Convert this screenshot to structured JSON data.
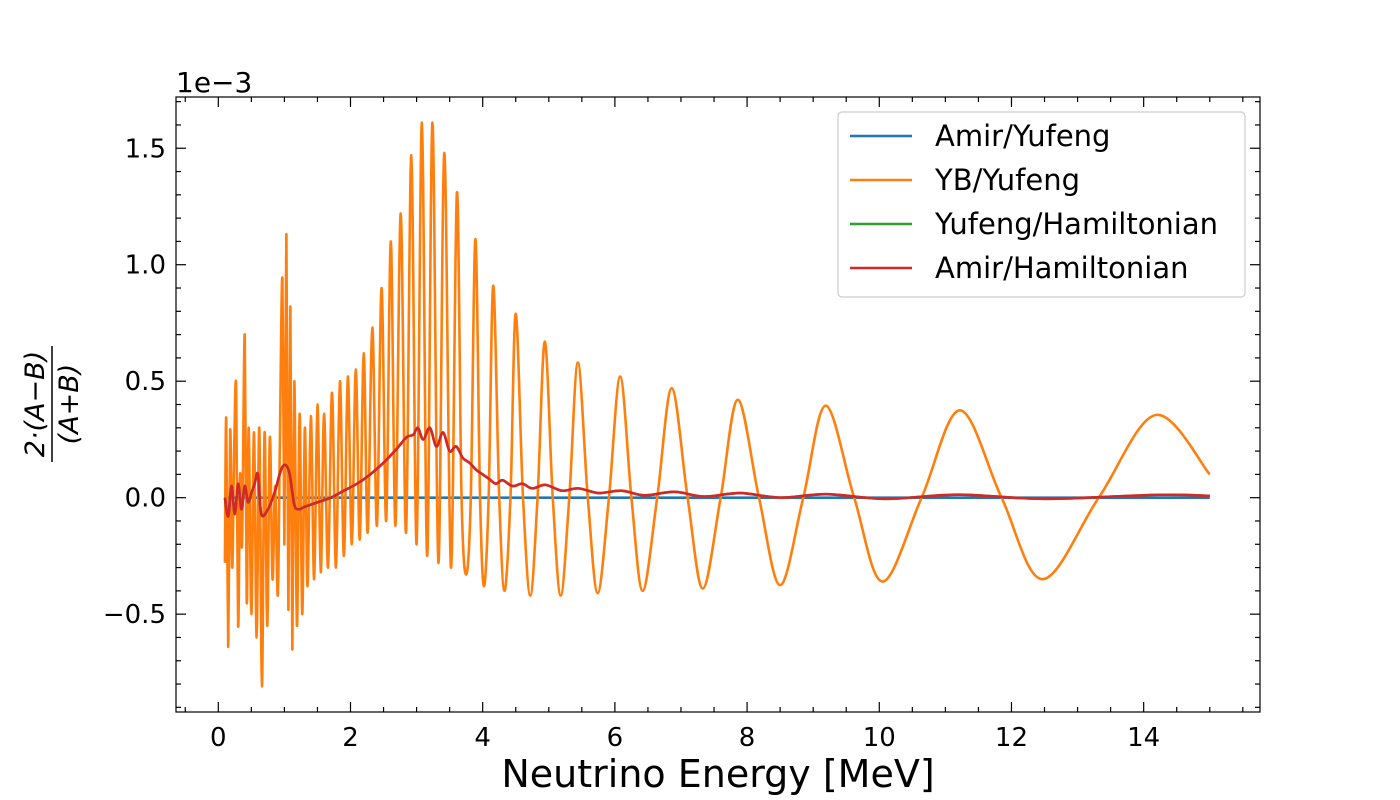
{
  "chart_data": {
    "type": "line",
    "offset_label": "1e−3",
    "xlabel": "Neutrino Energy [MeV]",
    "ylabel": {
      "numerator": "2·(A−B)",
      "denominator": "(A+B)"
    },
    "xlim": [
      -0.64,
      15.76
    ],
    "ylim": [
      -0.92,
      1.72
    ],
    "xticks": [
      0,
      2,
      4,
      6,
      8,
      10,
      12,
      14
    ],
    "yticks": [
      {
        "value": -0.5,
        "label": "−0.5"
      },
      {
        "value": 0,
        "label": "0.0"
      },
      0.5,
      {
        "value": 1,
        "label": "1.0"
      },
      1.5
    ],
    "xminorticks": [
      -0.5,
      0.5,
      1,
      1.5,
      2.5,
      3,
      3.5,
      4.5,
      5,
      5.5,
      6.5,
      7,
      7.5,
      8.5,
      9,
      9.5,
      10.5,
      11,
      11.5,
      12.5,
      13,
      13.5,
      14.5,
      15,
      15.5
    ],
    "yminorticks": [
      -0.9,
      -0.8,
      -0.7,
      -0.6,
      -0.4,
      -0.3,
      -0.2,
      -0.1,
      0.1,
      0.2,
      0.3,
      0.4,
      0.6,
      0.7,
      0.8,
      0.9,
      1.1,
      1.2,
      1.3,
      1.4,
      1.6,
      1.7
    ],
    "tick_direction": "in",
    "legend": "upper right",
    "series": [
      {
        "name": "Amir/Yufeng",
        "color": "#1f77b4",
        "x": [
          0.1,
          15
        ],
        "values": [
          0,
          0
        ]
      },
      {
        "name": "YB/Yufeng",
        "color": "#ff7f0e",
        "x": [
          0.1,
          0.12,
          0.15,
          0.18,
          0.21,
          0.24,
          0.27,
          0.3,
          0.33,
          0.36,
          0.4,
          0.43,
          0.46,
          0.5,
          0.54,
          0.58,
          0.62,
          0.66,
          0.7,
          0.74,
          0.78,
          0.82,
          0.86,
          0.9,
          0.93,
          0.97,
          1.0,
          1.03,
          1.06,
          1.09,
          1.12,
          1.15,
          1.19,
          1.23,
          1.27,
          1.31,
          1.35,
          1.4,
          1.45,
          1.5,
          1.55,
          1.6,
          1.66,
          1.72,
          1.78,
          1.84,
          1.9,
          1.96,
          2.02,
          2.08,
          2.14,
          2.2,
          2.26,
          2.33,
          2.4,
          2.47,
          2.54,
          2.61,
          2.68,
          2.76,
          2.84,
          2.92,
          3.0,
          3.08,
          3.16,
          3.24,
          3.33,
          3.42,
          3.52,
          3.61,
          3.68,
          3.75,
          3.82,
          3.89,
          3.96,
          4.02,
          4.09,
          4.16,
          4.25,
          4.33,
          4.42,
          4.5,
          4.61,
          4.72,
          4.83,
          4.94,
          5.06,
          5.18,
          5.31,
          5.44,
          5.59,
          5.74,
          5.91,
          6.08,
          6.25,
          6.42,
          6.64,
          6.86,
          7.1,
          7.33,
          7.6,
          7.86,
          8.18,
          8.5,
          8.85,
          9.19,
          9.62,
          10.05,
          10.64,
          11.22,
          11.85,
          12.47,
          13.32,
          14.18,
          15
        ],
        "values": [
          -0.28,
          0.34,
          -0.64,
          0.29,
          -0.3,
          0.2,
          0.47,
          -0.55,
          0.1,
          -0.2,
          0.7,
          -0.45,
          0.3,
          -0.5,
          0.28,
          -0.6,
          0.3,
          -0.81,
          0.28,
          -0.55,
          0.26,
          -0.35,
          0.05,
          -0.42,
          0.2,
          0.94,
          -0.2,
          1.13,
          -0.48,
          0.82,
          -0.65,
          0.5,
          -0.55,
          0.36,
          -0.5,
          0.3,
          -0.38,
          0.35,
          -0.35,
          0.4,
          -0.32,
          0.36,
          -0.3,
          0.45,
          -0.3,
          0.5,
          -0.25,
          0.52,
          -0.2,
          0.55,
          -0.18,
          0.62,
          -0.15,
          0.73,
          -0.12,
          0.9,
          -0.1,
          1.1,
          -0.12,
          1.22,
          -0.15,
          1.47,
          -0.2,
          1.61,
          -0.25,
          1.61,
          -0.28,
          1.48,
          -0.3,
          1.31,
          0,
          -0.33,
          0,
          1.11,
          0,
          -0.38,
          0,
          0.91,
          0,
          -0.4,
          0,
          0.79,
          0,
          -0.42,
          0,
          0.67,
          0,
          -0.42,
          0,
          0.58,
          0,
          -0.41,
          0,
          0.52,
          0,
          -0.4,
          0,
          0.47,
          0,
          -0.39,
          0,
          0.42,
          0,
          -0.375,
          0,
          0.395,
          0,
          -0.36,
          0,
          0.375,
          0,
          -0.35,
          0,
          0.355,
          0.1
        ]
      },
      {
        "name": "Yufeng/Hamiltonian",
        "color": "#2ca02c",
        "x": [
          0.1,
          0.15,
          0.2,
          0.25,
          0.3,
          0.35,
          0.4,
          0.45,
          0.5,
          0.55,
          0.6,
          0.65,
          0.75,
          0.85,
          0.95,
          1.02,
          1.08,
          1.15,
          1.22,
          1.3,
          1.5,
          1.7,
          1.9,
          2.1,
          2.3,
          2.5,
          2.7,
          2.85,
          2.95,
          3.02,
          3.1,
          3.2,
          3.3,
          3.4,
          3.5,
          3.6,
          3.7,
          3.8,
          3.9,
          4.0,
          4.1,
          4.2,
          4.3,
          4.45,
          4.6,
          4.75,
          4.95,
          5.2,
          5.45,
          5.75,
          6.1,
          6.45,
          6.9,
          7.35,
          7.9,
          8.5,
          9.2,
          10.1,
          11.2,
          12.5,
          14.2,
          15
        ],
        "values": [
          0,
          -0.08,
          0.05,
          -0.07,
          0.06,
          -0.05,
          0.05,
          -0.02,
          0.02,
          0.06,
          0.1,
          -0.07,
          -0.05,
          0.02,
          0.12,
          0.14,
          0.1,
          -0.03,
          -0.05,
          -0.04,
          -0.02,
          0,
          0.03,
          0.06,
          0.1,
          0.15,
          0.21,
          0.26,
          0.27,
          0.3,
          0.25,
          0.3,
          0.22,
          0.28,
          0.2,
          0.22,
          0.17,
          0.15,
          0.12,
          0.1,
          0.08,
          0.06,
          0.075,
          0.05,
          0.06,
          0.04,
          0.055,
          0.03,
          0.04,
          0.02,
          0.03,
          0.01,
          0.025,
          0.005,
          0.02,
          0,
          0.015,
          -0.005,
          0.013,
          -0.005,
          0.012,
          0.008
        ]
      },
      {
        "name": "Amir/Hamiltonian",
        "color": "#d62728",
        "x": [
          0.1,
          0.15,
          0.2,
          0.25,
          0.3,
          0.35,
          0.4,
          0.45,
          0.5,
          0.55,
          0.6,
          0.65,
          0.75,
          0.85,
          0.95,
          1.02,
          1.08,
          1.15,
          1.22,
          1.3,
          1.5,
          1.7,
          1.9,
          2.1,
          2.3,
          2.5,
          2.7,
          2.85,
          2.95,
          3.02,
          3.1,
          3.2,
          3.3,
          3.4,
          3.5,
          3.6,
          3.7,
          3.8,
          3.9,
          4.0,
          4.1,
          4.2,
          4.3,
          4.45,
          4.6,
          4.75,
          4.95,
          5.2,
          5.45,
          5.75,
          6.1,
          6.45,
          6.9,
          7.35,
          7.9,
          8.5,
          9.2,
          10.1,
          11.2,
          12.5,
          14.2,
          15
        ],
        "values": [
          0,
          -0.08,
          0.05,
          -0.07,
          0.06,
          -0.05,
          0.05,
          -0.02,
          0.02,
          0.06,
          0.1,
          -0.07,
          -0.05,
          0.02,
          0.12,
          0.14,
          0.1,
          -0.03,
          -0.05,
          -0.04,
          -0.02,
          0,
          0.03,
          0.06,
          0.1,
          0.15,
          0.21,
          0.26,
          0.27,
          0.3,
          0.25,
          0.3,
          0.22,
          0.28,
          0.2,
          0.22,
          0.17,
          0.15,
          0.12,
          0.1,
          0.08,
          0.06,
          0.075,
          0.05,
          0.06,
          0.04,
          0.055,
          0.03,
          0.04,
          0.02,
          0.03,
          0.01,
          0.025,
          0.005,
          0.02,
          0,
          0.015,
          -0.005,
          0.013,
          -0.005,
          0.012,
          0.008
        ]
      }
    ]
  }
}
